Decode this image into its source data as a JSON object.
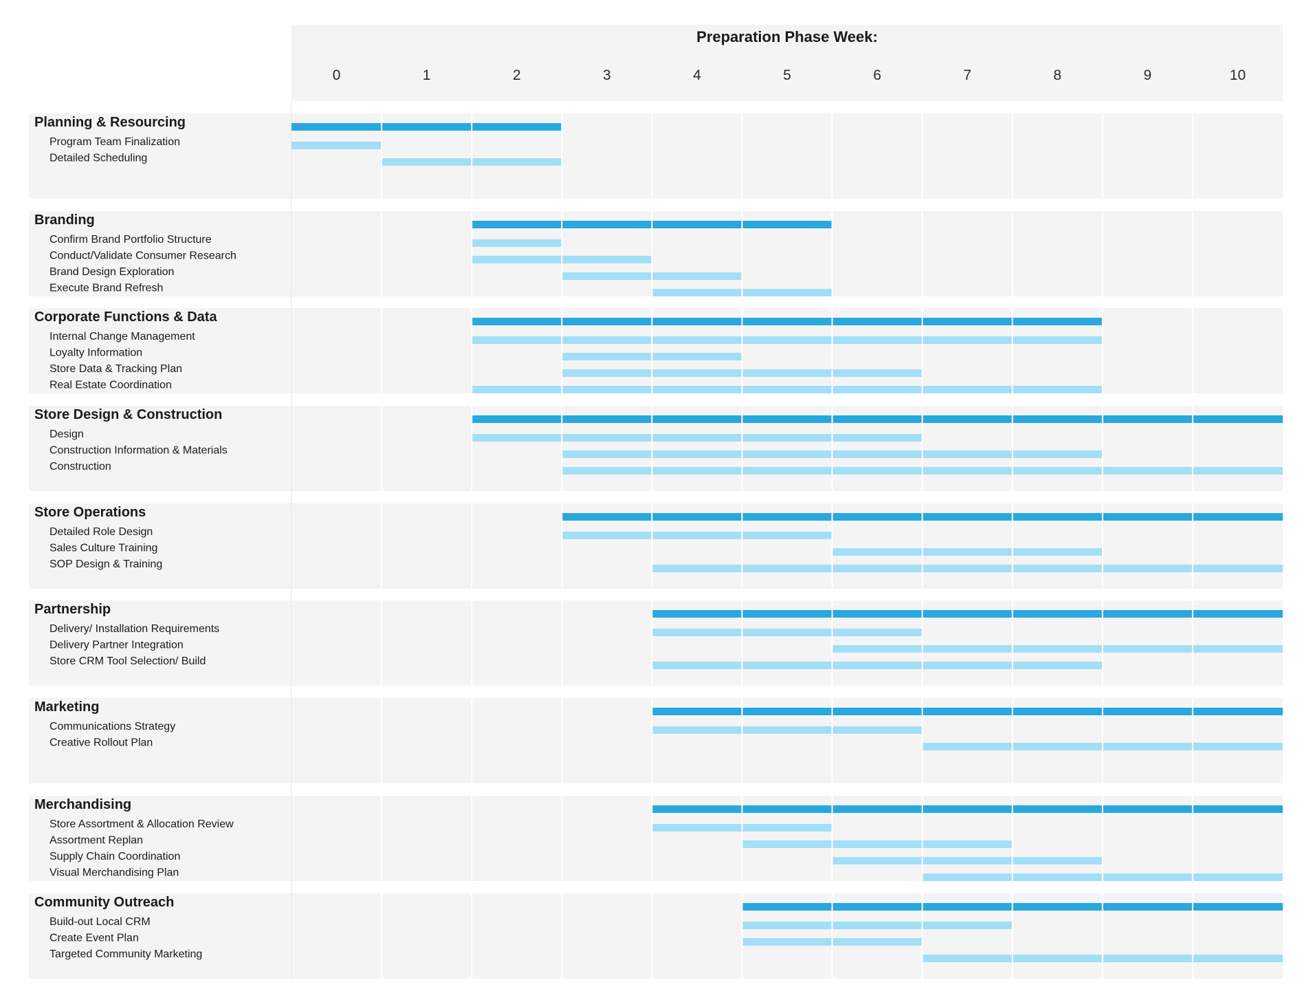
{
  "colors": {
    "panel_bg": "#f4f4f4",
    "header_bg": "#f4f4f4",
    "grid": "#e6e6e6",
    "separator": "#ffffff",
    "group_bar": "#29a7df",
    "task_bar": "#a3def7"
  },
  "chart_data": {
    "type": "gantt",
    "title": "Preparation Phase Week:",
    "x_ticks": [
      0,
      1,
      2,
      3,
      4,
      5,
      6,
      7,
      8,
      9,
      10
    ],
    "x_range": [
      -0.5,
      10.5
    ],
    "groups": [
      {
        "name": "Planning & Resourcing",
        "start": -0.5,
        "end": 2.5,
        "tasks": [
          {
            "name": "Program Team Finalization",
            "start": -0.5,
            "end": 0.5
          },
          {
            "name": "Detailed Scheduling",
            "start": 0.5,
            "end": 2.5
          }
        ]
      },
      {
        "name": "Branding",
        "start": 1.5,
        "end": 5.5,
        "tasks": [
          {
            "name": "Confirm Brand Portfolio Structure",
            "start": 1.5,
            "end": 2.5
          },
          {
            "name": "Conduct/Validate Consumer Research",
            "start": 1.5,
            "end": 3.5
          },
          {
            "name": "Brand Design Exploration",
            "start": 2.5,
            "end": 4.5
          },
          {
            "name": "Execute Brand Refresh",
            "start": 3.5,
            "end": 5.5
          }
        ]
      },
      {
        "name": "Corporate Functions & Data",
        "start": 1.5,
        "end": 8.5,
        "tasks": [
          {
            "name": "Internal Change Management",
            "start": 1.5,
            "end": 8.5
          },
          {
            "name": "Loyalty Information",
            "start": 2.5,
            "end": 4.5
          },
          {
            "name": "Store Data & Tracking Plan",
            "start": 2.5,
            "end": 6.5
          },
          {
            "name": "Real Estate Coordination",
            "start": 1.5,
            "end": 8.5
          }
        ]
      },
      {
        "name": "Store Design & Construction",
        "start": 1.5,
        "end": 10.5,
        "tasks": [
          {
            "name": "Design",
            "start": 1.5,
            "end": 6.5
          },
          {
            "name": "Construction Information & Materials",
            "start": 2.5,
            "end": 8.5
          },
          {
            "name": "Construction",
            "start": 2.5,
            "end": 10.5
          }
        ]
      },
      {
        "name": "Store Operations",
        "start": 2.5,
        "end": 10.5,
        "tasks": [
          {
            "name": "Detailed Role Design",
            "start": 2.5,
            "end": 5.5
          },
          {
            "name": "Sales Culture Training",
            "start": 5.5,
            "end": 8.5
          },
          {
            "name": "SOP Design & Training",
            "start": 3.5,
            "end": 10.5
          }
        ]
      },
      {
        "name": "Partnership",
        "start": 3.5,
        "end": 10.5,
        "tasks": [
          {
            "name": "Delivery/ Installation Requirements",
            "start": 3.5,
            "end": 6.5
          },
          {
            "name": "Delivery Partner Integration",
            "start": 5.5,
            "end": 10.5
          },
          {
            "name": "Store CRM Tool Selection/ Build",
            "start": 3.5,
            "end": 8.5
          }
        ]
      },
      {
        "name": "Marketing",
        "start": 3.5,
        "end": 10.5,
        "tasks": [
          {
            "name": "Communications Strategy",
            "start": 3.5,
            "end": 6.5
          },
          {
            "name": "Creative Rollout Plan",
            "start": 6.5,
            "end": 10.5
          }
        ]
      },
      {
        "name": "Merchandising",
        "start": 3.5,
        "end": 10.5,
        "tasks": [
          {
            "name": "Store Assortment & Allocation Review",
            "start": 3.5,
            "end": 5.5
          },
          {
            "name": "Assortment Replan",
            "start": 4.5,
            "end": 7.5
          },
          {
            "name": "Supply Chain Coordination",
            "start": 5.5,
            "end": 8.5
          },
          {
            "name": "Visual Merchandising Plan",
            "start": 6.5,
            "end": 10.5
          }
        ]
      },
      {
        "name": "Community Outreach",
        "start": 4.5,
        "end": 10.5,
        "tasks": [
          {
            "name": "Build-out Local CRM",
            "start": 4.5,
            "end": 7.5
          },
          {
            "name": "Create Event Plan",
            "start": 4.5,
            "end": 6.5
          },
          {
            "name": "Targeted Community Marketing",
            "start": 6.5,
            "end": 10.5
          }
        ]
      }
    ]
  }
}
